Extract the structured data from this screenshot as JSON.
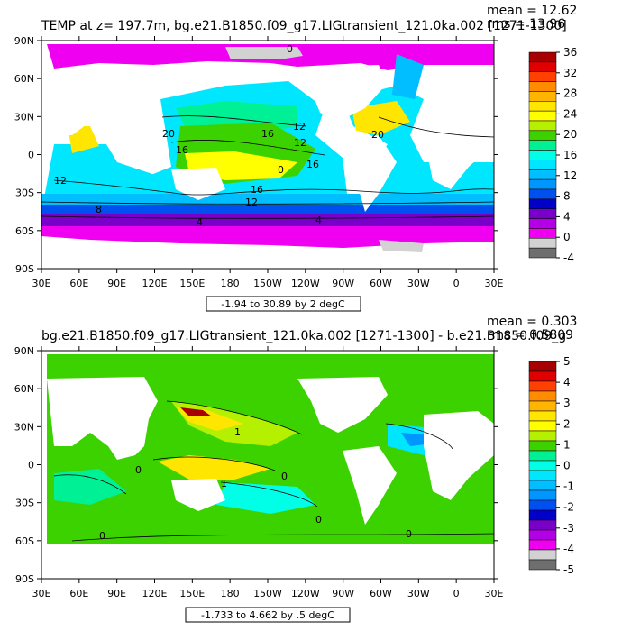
{
  "chart_data": [
    {
      "type": "heatmap",
      "title": "TEMP at z= 197.7m, bg.e21.B1850.f09_g17.LIGtransient_121.0ka.002 [1271-1300]",
      "mean_label": "mean = 12.62",
      "rms_label": "rms = 13.96",
      "range_label": "-1.94 to 30.89 by 2 degC",
      "x_ticks": [
        "30E",
        "60E",
        "90E",
        "120E",
        "150E",
        "180",
        "150W",
        "120W",
        "90W",
        "60W",
        "30W",
        "0",
        "30E"
      ],
      "y_ticks": [
        "90N",
        "60N",
        "30N",
        "0",
        "30S",
        "60S",
        "90S"
      ],
      "colorbar_levels": [
        36,
        32,
        28,
        24,
        20,
        16,
        12,
        8,
        4,
        0,
        -4
      ],
      "colorbar_colors": [
        "#a80000",
        "#e00000",
        "#ff4000",
        "#ff8c00",
        "#ffb400",
        "#ffe600",
        "#ffff00",
        "#b4f000",
        "#3cd200",
        "#00f096",
        "#00ffe6",
        "#00e6ff",
        "#00beff",
        "#0096ff",
        "#0050f0",
        "#0000c8",
        "#7800c8",
        "#b400e6",
        "#f000f0",
        "#d2d2d2",
        "#6e6e6e"
      ],
      "contour_labels": [
        "0",
        "12",
        "20",
        "16",
        "12",
        "20",
        "16",
        "0",
        "16",
        "12",
        "8",
        "12",
        "4",
        "4",
        "16"
      ]
    },
    {
      "type": "heatmap",
      "title": "bg.e21.B1850.f09_g17.LIGtransient_121.0ka.002 [1271-1300] - b.e21.B1850.f09_g",
      "mean_label": "mean = 0.303",
      "rms_label": "rms = 0.5809",
      "range_label": "-1.733 to 4.662 by .5 degC",
      "x_ticks": [
        "30E",
        "60E",
        "90E",
        "120E",
        "150E",
        "180",
        "150W",
        "120W",
        "90W",
        "60W",
        "30W",
        "0",
        "30E"
      ],
      "y_ticks": [
        "90N",
        "60N",
        "30N",
        "0",
        "30S",
        "60S",
        "90S"
      ],
      "colorbar_levels": [
        5,
        4,
        3,
        2,
        1,
        0,
        -1,
        -2,
        -3,
        -4,
        -5
      ],
      "colorbar_colors": [
        "#a80000",
        "#e00000",
        "#ff4000",
        "#ff8c00",
        "#ffb400",
        "#ffe600",
        "#ffff00",
        "#b4f000",
        "#3cd200",
        "#00f096",
        "#00ffe6",
        "#00e6ff",
        "#00beff",
        "#0096ff",
        "#0050f0",
        "#0000c8",
        "#7800c8",
        "#b400e6",
        "#f000f0",
        "#d2d2d2",
        "#6e6e6e"
      ],
      "contour_labels": [
        "1",
        "0",
        "0",
        "1",
        "0",
        "0",
        "0"
      ]
    }
  ]
}
